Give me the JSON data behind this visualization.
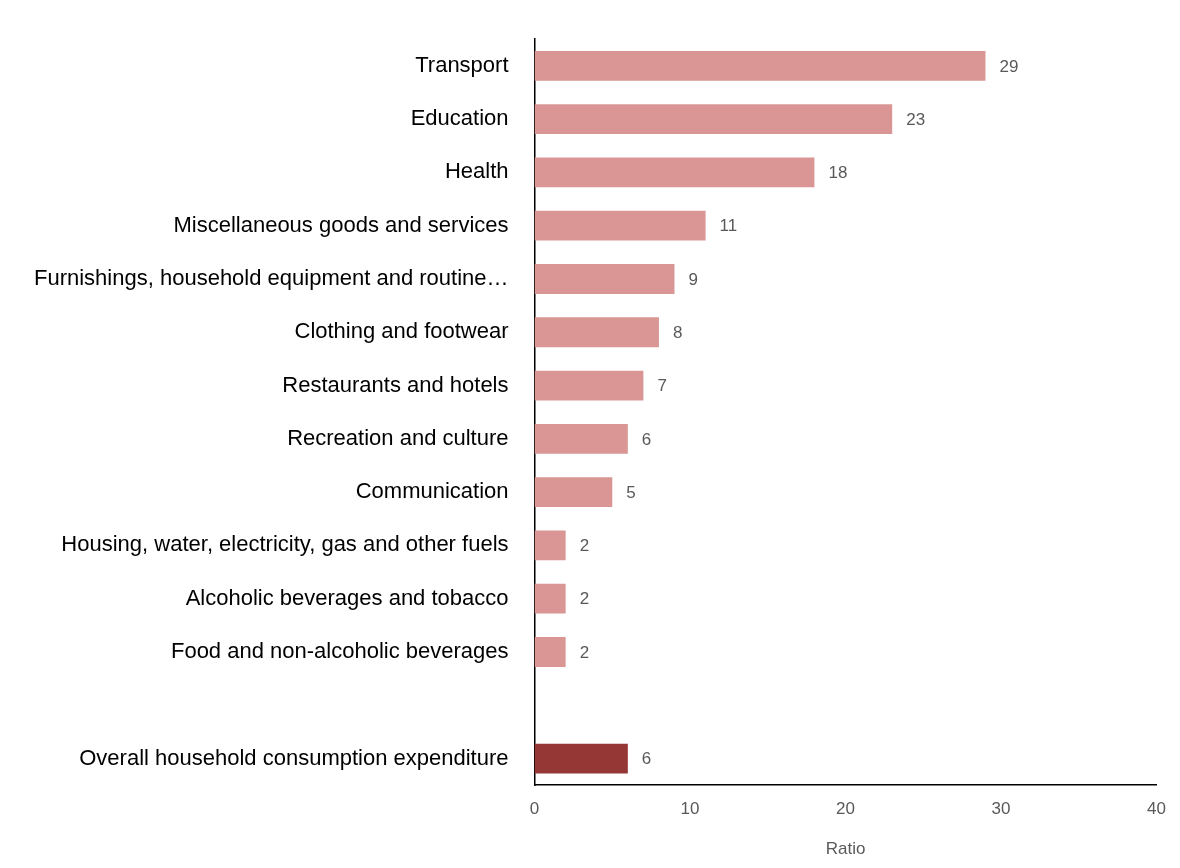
{
  "chart_data": {
    "type": "bar",
    "orientation": "horizontal",
    "xlabel": "Ratio",
    "categories": [
      "Transport",
      "Education",
      "Health",
      "Miscellaneous goods and services",
      "Furnishings, household equipment and routine…",
      "Clothing and footwear",
      "Restaurants and hotels",
      "Recreation and culture",
      "Communication",
      "Housing, water, electricity, gas and other fuels",
      "Alcoholic beverages and tobacco",
      "Food and non-alcoholic beverages",
      null,
      "Overall household consumption expenditure"
    ],
    "values": [
      29,
      23,
      18,
      11,
      9,
      8,
      7,
      6,
      5,
      2,
      2,
      2,
      null,
      6
    ],
    "colors": [
      "#d99694",
      "#d99694",
      "#d99694",
      "#d99694",
      "#d99694",
      "#d99694",
      "#d99694",
      "#d99694",
      "#d99694",
      "#d99694",
      "#d99694",
      "#d99694",
      "#d99694",
      "#953735"
    ],
    "xlim": [
      0,
      40
    ],
    "xticks": [
      0,
      10,
      20,
      30,
      40
    ],
    "grid": false,
    "legend": false,
    "data_labels": true
  }
}
